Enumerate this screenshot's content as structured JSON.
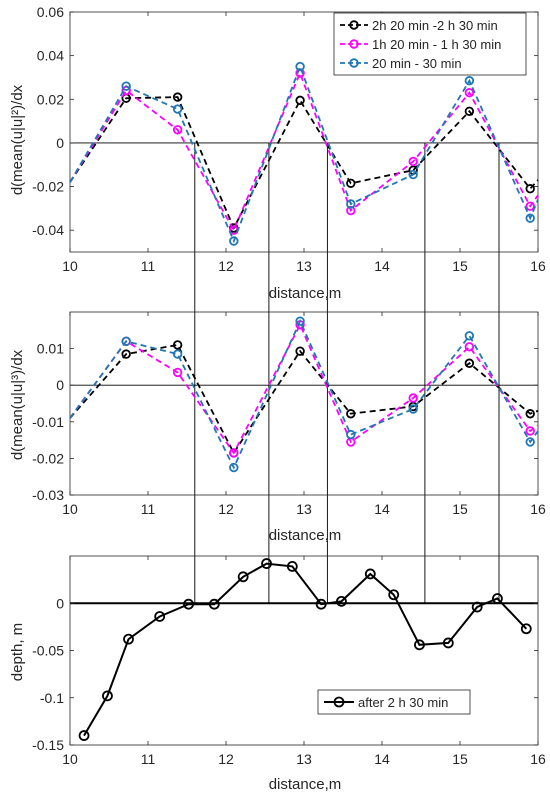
{
  "chart_data": [
    {
      "type": "line",
      "title": "",
      "xlabel": "distance,m",
      "ylabel": "d(mean(u|u|²)/dx",
      "xlim": [
        10,
        16
      ],
      "ylim": [
        -0.05,
        0.06
      ],
      "xticks": [
        10,
        11,
        12,
        13,
        14,
        15,
        16
      ],
      "yticks": [
        -0.04,
        -0.02,
        0,
        0.02,
        0.04,
        0.06
      ],
      "ytick_labels": [
        "-0.04",
        "-0.02",
        "0",
        "0.02",
        "0.04",
        "0.06"
      ],
      "zero_line": true,
      "grid": false,
      "legend": "top-right",
      "x": [
        10.0,
        10.72,
        11.38,
        12.1,
        12.95,
        13.6,
        14.4,
        15.12,
        15.9,
        16.0
      ],
      "series": [
        {
          "name": "2h 20 min -2 h 30 min",
          "color": "#000000",
          "values": [
            -0.018,
            0.0205,
            0.021,
            -0.039,
            0.0195,
            -0.0185,
            -0.0125,
            0.0145,
            -0.021,
            -0.017
          ],
          "marker_idx": [
            1,
            2,
            3,
            4,
            5,
            6,
            7,
            8
          ]
        },
        {
          "name": "1h 20 min - 1 h 30 min",
          "color": "#ff00ff",
          "values": [
            -0.018,
            0.024,
            0.006,
            -0.04,
            0.032,
            -0.031,
            -0.0085,
            0.023,
            -0.029,
            -0.024
          ],
          "marker_idx": [
            1,
            2,
            3,
            4,
            5,
            6,
            7,
            8
          ]
        },
        {
          "name": "20 min - 30 min",
          "color": "#1f77b4",
          "values": [
            -0.018,
            0.026,
            0.0155,
            -0.045,
            0.035,
            -0.028,
            -0.0145,
            0.0285,
            -0.0345,
            -0.026
          ],
          "marker_idx": [
            1,
            2,
            3,
            4,
            5,
            6,
            7,
            8
          ]
        }
      ]
    },
    {
      "type": "line",
      "title": "",
      "xlabel": "distance,m",
      "ylabel": "d(mean(u|u|³)/dx",
      "xlim": [
        10,
        16
      ],
      "ylim": [
        -0.03,
        0.02
      ],
      "xticks": [
        10,
        11,
        12,
        13,
        14,
        15,
        16
      ],
      "yticks": [
        -0.03,
        -0.02,
        -0.01,
        0,
        0.01
      ],
      "ytick_labels": [
        "-0.03",
        "-0.02",
        "-0.01",
        "0",
        "0.01"
      ],
      "zero_line": true,
      "grid": false,
      "x": [
        10.0,
        10.72,
        11.38,
        12.1,
        12.95,
        13.6,
        14.4,
        15.12,
        15.9,
        16.0
      ],
      "series": [
        {
          "name": "2h 20 min -2 h 30 min",
          "color": "#000000",
          "values": [
            -0.009,
            0.0085,
            0.011,
            -0.0185,
            0.0093,
            -0.0078,
            -0.0058,
            0.006,
            -0.0078,
            -0.007
          ],
          "marker_idx": [
            1,
            2,
            3,
            4,
            5,
            6,
            7,
            8
          ]
        },
        {
          "name": "1h 20 min - 1 h 30 min",
          "color": "#ff00ff",
          "values": [
            -0.009,
            0.012,
            0.0035,
            -0.0185,
            0.0165,
            -0.0155,
            -0.0035,
            0.0105,
            -0.0125,
            -0.011
          ],
          "marker_idx": [
            1,
            2,
            3,
            4,
            5,
            6,
            7,
            8
          ]
        },
        {
          "name": "20 min - 30 min",
          "color": "#1f77b4",
          "values": [
            -0.009,
            0.012,
            0.0085,
            -0.0225,
            0.0175,
            -0.0135,
            -0.0065,
            0.0135,
            -0.0155,
            -0.0125
          ],
          "marker_idx": [
            1,
            2,
            3,
            4,
            5,
            6,
            7,
            8
          ]
        }
      ]
    },
    {
      "type": "line",
      "title": "",
      "xlabel": "distance,m",
      "ylabel": "depth, m",
      "xlim": [
        10,
        16
      ],
      "ylim": [
        -0.15,
        0.05
      ],
      "xticks": [
        10,
        11,
        12,
        13,
        14,
        15,
        16
      ],
      "yticks": [
        -0.15,
        -0.1,
        -0.05,
        0
      ],
      "ytick_labels": [
        "-0.15",
        "-0.1",
        "-0.05",
        "0"
      ],
      "zero_line": true,
      "grid": false,
      "legend": "bottom-right",
      "series": [
        {
          "name": "after 2 h 30 min",
          "color": "#000000",
          "x": [
            10.18,
            10.48,
            10.75,
            11.15,
            11.52,
            11.85,
            12.22,
            12.52,
            12.85,
            13.22,
            13.48,
            13.85,
            14.15,
            14.48,
            14.85,
            15.22,
            15.48,
            15.85
          ],
          "values": [
            -0.14,
            -0.098,
            -0.038,
            -0.014,
            -0.001,
            -0.001,
            0.028,
            0.042,
            0.039,
            -0.001,
            0.002,
            0.031,
            0.009,
            -0.044,
            -0.042,
            -0.004,
            0.005,
            -0.027
          ]
        }
      ]
    }
  ],
  "connector_x": [
    11.6,
    12.55,
    13.3,
    14.55,
    15.5
  ]
}
